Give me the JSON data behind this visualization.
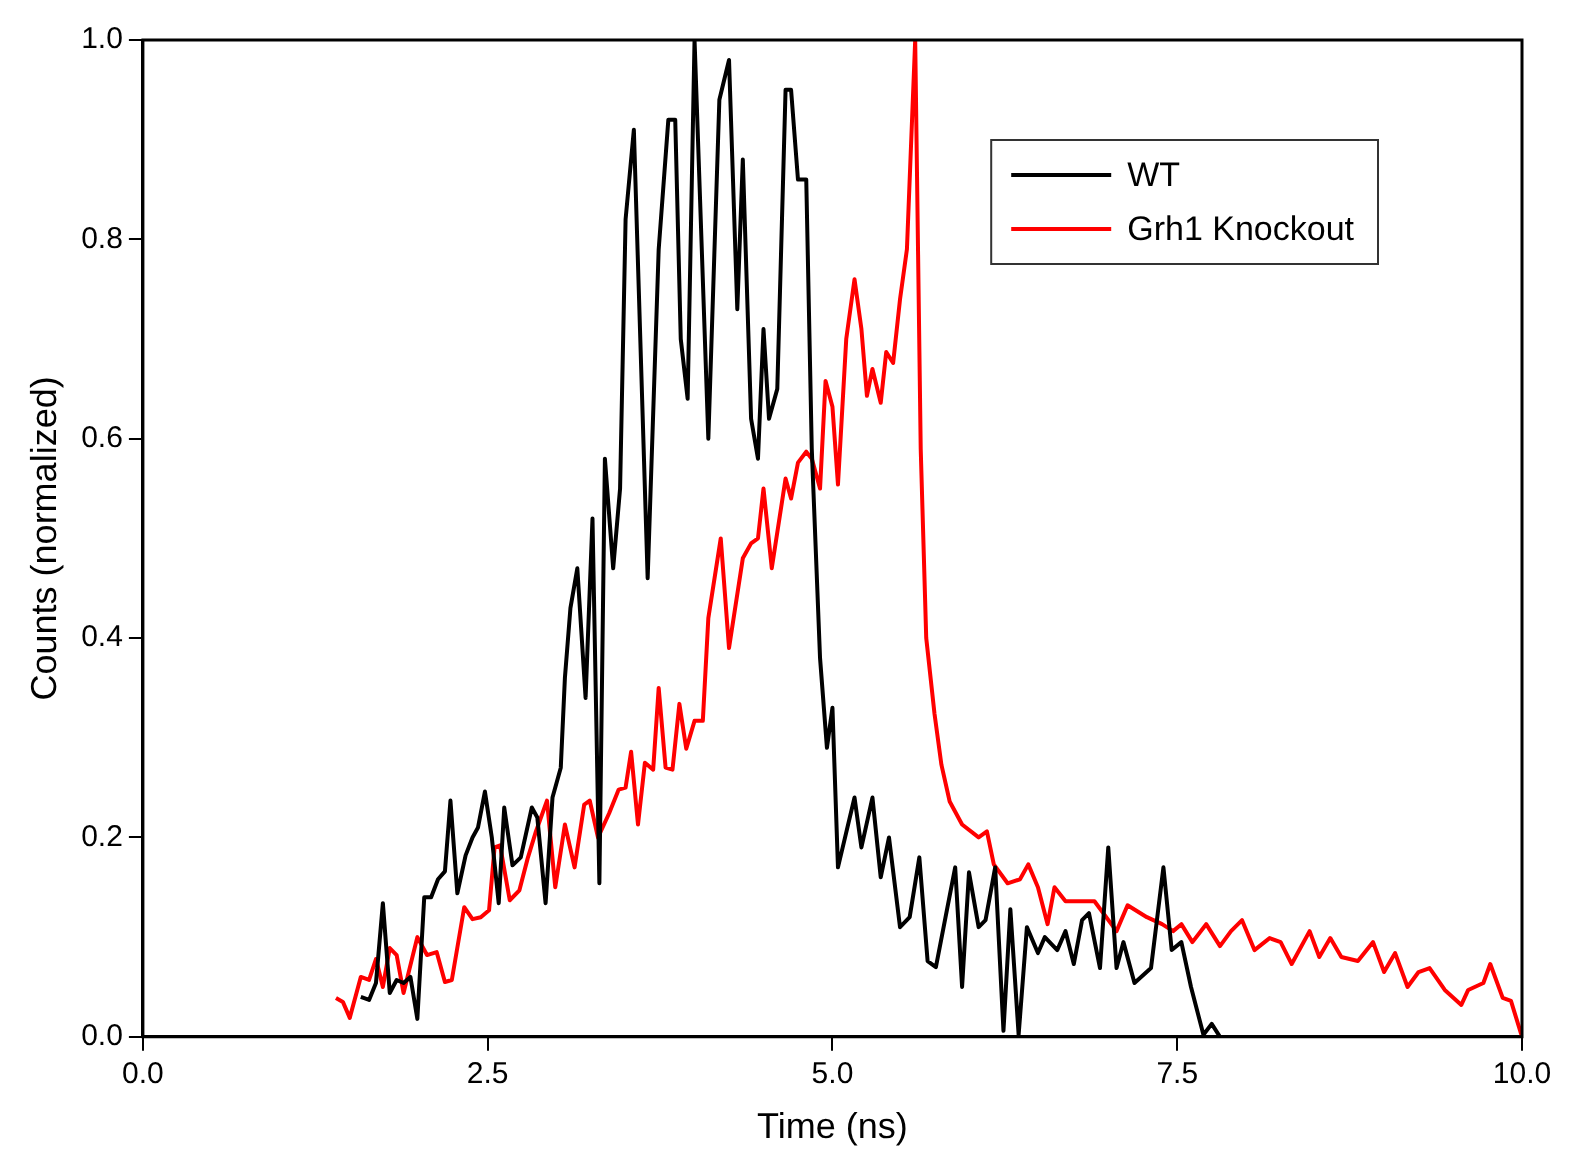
{
  "chart_data": {
    "type": "line",
    "xlabel": "Time (ns)",
    "ylabel": "Counts (normalized)",
    "xlim": [
      0,
      10
    ],
    "ylim": [
      0,
      1
    ],
    "xticks": [
      {
        "value": 0,
        "label": "0.0"
      },
      {
        "value": 2.5,
        "label": "2.5"
      },
      {
        "value": 5,
        "label": "5.0"
      },
      {
        "value": 7.5,
        "label": "7.5"
      },
      {
        "value": 10,
        "label": "10.0"
      }
    ],
    "yticks": [
      {
        "value": 0,
        "label": "0.0"
      },
      {
        "value": 0.2,
        "label": "0.2"
      },
      {
        "value": 0.4,
        "label": "0.4"
      },
      {
        "value": 0.6,
        "label": "0.6"
      },
      {
        "value": 0.8,
        "label": "0.8"
      },
      {
        "value": 1,
        "label": "1.0"
      }
    ],
    "grid": false,
    "legend": "top right",
    "marker": "none",
    "line_style": "solid",
    "series": [
      {
        "name": "WT",
        "color": "#000000",
        "x": [
          1.58,
          1.64,
          1.69,
          1.74,
          1.79,
          1.84,
          1.89,
          1.94,
          1.99,
          2.04,
          2.09,
          2.14,
          2.19,
          2.23,
          2.28,
          2.34,
          2.39,
          2.43,
          2.48,
          2.53,
          2.58,
          2.62,
          2.68,
          2.74,
          2.82,
          2.86,
          2.92,
          2.97,
          3.03,
          3.06,
          3.1,
          3.15,
          3.21,
          3.26,
          3.31,
          3.35,
          3.41,
          3.46,
          3.5,
          3.56,
          3.66,
          3.74,
          3.81,
          3.86,
          3.9,
          3.95,
          4.0,
          4.1,
          4.18,
          4.25,
          4.31,
          4.35,
          4.41,
          4.46,
          4.5,
          4.54,
          4.6,
          4.66,
          4.7,
          4.75,
          4.81,
          4.85,
          4.91,
          4.96,
          5.0,
          5.04,
          5.16,
          5.21,
          5.29,
          5.35,
          5.41,
          5.49,
          5.56,
          5.63,
          5.69,
          5.75,
          5.82,
          5.89,
          5.94,
          5.99,
          6.06,
          6.11,
          6.18,
          6.24,
          6.29,
          6.35,
          6.41,
          6.49,
          6.54,
          6.63,
          6.69,
          6.75,
          6.81,
          6.86,
          6.94,
          7.0,
          7.06,
          7.11,
          7.19,
          7.31,
          7.4,
          7.46,
          7.53,
          7.6,
          7.69,
          7.75,
          7.81
        ],
        "values": [
          0.04,
          0.037,
          0.054,
          0.134,
          0.044,
          0.057,
          0.054,
          0.06,
          0.018,
          0.14,
          0.14,
          0.158,
          0.166,
          0.237,
          0.144,
          0.182,
          0.2,
          0.21,
          0.246,
          0.2,
          0.134,
          0.23,
          0.172,
          0.18,
          0.23,
          0.22,
          0.134,
          0.24,
          0.27,
          0.36,
          0.43,
          0.47,
          0.34,
          0.52,
          0.154,
          0.58,
          0.47,
          0.55,
          0.82,
          0.91,
          0.46,
          0.79,
          0.92,
          0.92,
          0.7,
          0.64,
          1.0,
          0.6,
          0.94,
          0.98,
          0.73,
          0.88,
          0.62,
          0.58,
          0.71,
          0.62,
          0.65,
          0.95,
          0.95,
          0.86,
          0.86,
          0.59,
          0.38,
          0.29,
          0.33,
          0.17,
          0.24,
          0.19,
          0.24,
          0.16,
          0.2,
          0.11,
          0.12,
          0.18,
          0.076,
          0.07,
          0.12,
          0.17,
          0.05,
          0.165,
          0.11,
          0.117,
          0.17,
          0.006,
          0.128,
          0.002,
          0.11,
          0.084,
          0.1,
          0.087,
          0.106,
          0.073,
          0.117,
          0.124,
          0.069,
          0.19,
          0.069,
          0.095,
          0.054,
          0.069,
          0.17,
          0.087,
          0.095,
          0.05,
          0.002,
          0.013,
          0
        ]
      },
      {
        "name": "Grh1 Knockout",
        "color": "#ff0000",
        "x": [
          1.4,
          1.45,
          1.5,
          1.58,
          1.64,
          1.69,
          1.74,
          1.79,
          1.84,
          1.89,
          1.99,
          2.06,
          2.13,
          2.19,
          2.24,
          2.33,
          2.39,
          2.45,
          2.51,
          2.55,
          2.59,
          2.66,
          2.73,
          2.79,
          2.85,
          2.93,
          2.99,
          3.06,
          3.13,
          3.2,
          3.24,
          3.3,
          3.38,
          3.45,
          3.5,
          3.54,
          3.59,
          3.64,
          3.7,
          3.74,
          3.79,
          3.84,
          3.89,
          3.94,
          4.0,
          4.06,
          4.1,
          4.19,
          4.25,
          4.35,
          4.41,
          4.46,
          4.5,
          4.56,
          4.66,
          4.7,
          4.75,
          4.81,
          4.85,
          4.91,
          4.95,
          5.0,
          5.04,
          5.1,
          5.16,
          5.21,
          5.25,
          5.29,
          5.35,
          5.39,
          5.44,
          5.49,
          5.54,
          5.6,
          5.64,
          5.68,
          5.74,
          5.79,
          5.85,
          5.94,
          6.06,
          6.12,
          6.17,
          6.27,
          6.36,
          6.42,
          6.49,
          6.56,
          6.61,
          6.69,
          6.75,
          6.9,
          7.06,
          7.14,
          7.28,
          7.39,
          7.47,
          7.53,
          7.61,
          7.71,
          7.81,
          7.89,
          7.97,
          8.06,
          8.17,
          8.25,
          8.33,
          8.46,
          8.53,
          8.61,
          8.69,
          8.81,
          8.92,
          9.0,
          9.08,
          9.17,
          9.25,
          9.33,
          9.44,
          9.56,
          9.61,
          9.72,
          9.77,
          9.86,
          9.92,
          10.0
        ],
        "values": [
          0.039,
          0.035,
          0.019,
          0.06,
          0.057,
          0.078,
          0.05,
          0.089,
          0.082,
          0.044,
          0.1,
          0.082,
          0.085,
          0.055,
          0.057,
          0.13,
          0.118,
          0.12,
          0.127,
          0.19,
          0.192,
          0.137,
          0.147,
          0.179,
          0.206,
          0.237,
          0.15,
          0.213,
          0.17,
          0.233,
          0.237,
          0.2,
          0.224,
          0.248,
          0.25,
          0.286,
          0.213,
          0.275,
          0.268,
          0.35,
          0.27,
          0.268,
          0.334,
          0.289,
          0.317,
          0.317,
          0.42,
          0.5,
          0.39,
          0.48,
          0.495,
          0.5,
          0.55,
          0.47,
          0.56,
          0.54,
          0.576,
          0.587,
          0.58,
          0.55,
          0.658,
          0.632,
          0.554,
          0.7,
          0.76,
          0.71,
          0.643,
          0.67,
          0.636,
          0.687,
          0.676,
          0.74,
          0.79,
          1.0,
          0.59,
          0.4,
          0.324,
          0.273,
          0.236,
          0.213,
          0.2,
          0.206,
          0.173,
          0.154,
          0.158,
          0.173,
          0.15,
          0.113,
          0.15,
          0.136,
          0.136,
          0.136,
          0.106,
          0.132,
          0.12,
          0.113,
          0.106,
          0.113,
          0.095,
          0.113,
          0.091,
          0.106,
          0.117,
          0.087,
          0.099,
          0.095,
          0.073,
          0.106,
          0.08,
          0.099,
          0.08,
          0.076,
          0.095,
          0.065,
          0.084,
          0.05,
          0.065,
          0.069,
          0.047,
          0.032,
          0.047,
          0.054,
          0.073,
          0.039,
          0.036,
          0
        ]
      }
    ]
  }
}
